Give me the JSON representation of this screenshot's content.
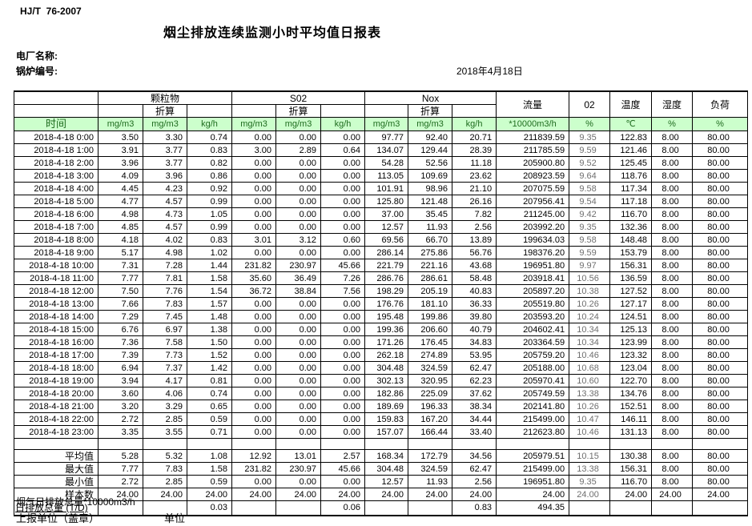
{
  "header": {
    "standard": "HJ/T  76-2007",
    "title": "烟尘排放连续监测小时平均值日报表",
    "plant_label": "电厂名称:",
    "boiler_label": "锅炉编号:",
    "date": "2018年4月18日"
  },
  "table": {
    "group_pm": "颗粒物",
    "group_so2": "S02",
    "group_nox": "Nox",
    "converted_label": "折算",
    "time_label": "时间",
    "flow_label": "流量",
    "o2_label": "02",
    "temp_label": "温度",
    "humidity_label": "湿度",
    "load_label": "负荷",
    "units": [
      "mg/m3",
      "mg/m3",
      "kg/h",
      "mg/m3",
      "mg/m3",
      "kg/h",
      "mg/m3",
      "mg/m3",
      "kg/h",
      "*10000m3/h",
      "%",
      "℃",
      "%",
      "%"
    ],
    "rows": [
      {
        "time": "2018-4-18 0:00",
        "values": [
          "3.50",
          "3.30",
          "0.74",
          "0.00",
          "0.00",
          "0.00",
          "97.77",
          "92.40",
          "20.71",
          "211839.59",
          "9.35",
          "122.83",
          "8.00",
          "80.00"
        ]
      },
      {
        "time": "2018-4-18 1:00",
        "values": [
          "3.91",
          "3.77",
          "0.83",
          "3.00",
          "2.89",
          "0.64",
          "134.07",
          "129.44",
          "28.39",
          "211785.59",
          "9.59",
          "121.46",
          "8.00",
          "80.00"
        ]
      },
      {
        "time": "2018-4-18 2:00",
        "values": [
          "3.96",
          "3.77",
          "0.82",
          "0.00",
          "0.00",
          "0.00",
          "54.28",
          "52.56",
          "11.18",
          "205900.80",
          "9.52",
          "125.45",
          "8.00",
          "80.00"
        ]
      },
      {
        "time": "2018-4-18 3:00",
        "values": [
          "4.09",
          "3.96",
          "0.86",
          "0.00",
          "0.00",
          "0.00",
          "113.05",
          "109.69",
          "23.62",
          "208923.59",
          "9.64",
          "118.76",
          "8.00",
          "80.00"
        ]
      },
      {
        "time": "2018-4-18 4:00",
        "values": [
          "4.45",
          "4.23",
          "0.92",
          "0.00",
          "0.00",
          "0.00",
          "101.91",
          "98.96",
          "21.10",
          "207075.59",
          "9.58",
          "117.34",
          "8.00",
          "80.00"
        ]
      },
      {
        "time": "2018-4-18 5:00",
        "values": [
          "4.77",
          "4.57",
          "0.99",
          "0.00",
          "0.00",
          "0.00",
          "125.80",
          "121.48",
          "26.16",
          "207956.41",
          "9.54",
          "117.18",
          "8.00",
          "80.00"
        ]
      },
      {
        "time": "2018-4-18 6:00",
        "values": [
          "4.98",
          "4.73",
          "1.05",
          "0.00",
          "0.00",
          "0.00",
          "37.00",
          "35.45",
          "7.82",
          "211245.00",
          "9.42",
          "116.70",
          "8.00",
          "80.00"
        ]
      },
      {
        "time": "2018-4-18 7:00",
        "values": [
          "4.85",
          "4.57",
          "0.99",
          "0.00",
          "0.00",
          "0.00",
          "12.57",
          "11.93",
          "2.56",
          "203992.20",
          "9.35",
          "132.36",
          "8.00",
          "80.00"
        ]
      },
      {
        "time": "2018-4-18 8:00",
        "values": [
          "4.18",
          "4.02",
          "0.83",
          "3.01",
          "3.12",
          "0.60",
          "69.56",
          "66.70",
          "13.89",
          "199634.03",
          "9.58",
          "148.48",
          "8.00",
          "80.00"
        ]
      },
      {
        "time": "2018-4-18 9:00",
        "values": [
          "5.17",
          "4.98",
          "1.02",
          "0.00",
          "0.00",
          "0.00",
          "286.14",
          "275.86",
          "56.76",
          "198376.20",
          "9.59",
          "153.79",
          "8.00",
          "80.00"
        ]
      },
      {
        "time": "2018-4-18 10:00",
        "values": [
          "7.31",
          "7.28",
          "1.44",
          "231.82",
          "230.97",
          "45.66",
          "221.79",
          "221.16",
          "43.68",
          "196951.80",
          "9.97",
          "156.31",
          "8.00",
          "80.00"
        ]
      },
      {
        "time": "2018-4-18 11:00",
        "values": [
          "7.77",
          "7.81",
          "1.58",
          "35.60",
          "36.49",
          "7.26",
          "286.76",
          "286.61",
          "58.48",
          "203918.41",
          "10.56",
          "136.59",
          "8.00",
          "80.00"
        ]
      },
      {
        "time": "2018-4-18 12:00",
        "values": [
          "7.50",
          "7.76",
          "1.54",
          "36.72",
          "38.84",
          "7.56",
          "198.29",
          "205.19",
          "40.83",
          "205897.20",
          "10.38",
          "127.52",
          "8.00",
          "80.00"
        ]
      },
      {
        "time": "2018-4-18 13:00",
        "values": [
          "7.66",
          "7.83",
          "1.57",
          "0.00",
          "0.00",
          "0.00",
          "176.76",
          "181.10",
          "36.33",
          "205519.80",
          "10.26",
          "127.17",
          "8.00",
          "80.00"
        ]
      },
      {
        "time": "2018-4-18 14:00",
        "values": [
          "7.29",
          "7.45",
          "1.48",
          "0.00",
          "0.00",
          "0.00",
          "195.48",
          "199.86",
          "39.80",
          "203593.20",
          "10.24",
          "124.51",
          "8.00",
          "80.00"
        ]
      },
      {
        "time": "2018-4-18 15:00",
        "values": [
          "6.76",
          "6.97",
          "1.38",
          "0.00",
          "0.00",
          "0.00",
          "199.36",
          "206.60",
          "40.79",
          "204602.41",
          "10.34",
          "125.13",
          "8.00",
          "80.00"
        ]
      },
      {
        "time": "2018-4-18 16:00",
        "values": [
          "7.36",
          "7.58",
          "1.50",
          "0.00",
          "0.00",
          "0.00",
          "171.26",
          "176.45",
          "34.83",
          "203364.59",
          "10.34",
          "123.99",
          "8.00",
          "80.00"
        ]
      },
      {
        "time": "2018-4-18 17:00",
        "values": [
          "7.39",
          "7.73",
          "1.52",
          "0.00",
          "0.00",
          "0.00",
          "262.18",
          "274.89",
          "53.95",
          "205759.20",
          "10.46",
          "123.32",
          "8.00",
          "80.00"
        ]
      },
      {
        "time": "2018-4-18 18:00",
        "values": [
          "6.94",
          "7.37",
          "1.42",
          "0.00",
          "0.00",
          "0.00",
          "304.48",
          "324.59",
          "62.47",
          "205188.00",
          "10.68",
          "123.04",
          "8.00",
          "80.00"
        ]
      },
      {
        "time": "2018-4-18 19:00",
        "values": [
          "3.94",
          "4.17",
          "0.81",
          "0.00",
          "0.00",
          "0.00",
          "302.13",
          "320.95",
          "62.23",
          "205970.41",
          "10.60",
          "122.70",
          "8.00",
          "80.00"
        ]
      },
      {
        "time": "2018-4-18 20:00",
        "values": [
          "3.60",
          "4.06",
          "0.74",
          "0.00",
          "0.00",
          "0.00",
          "182.86",
          "225.09",
          "37.62",
          "205749.59",
          "13.38",
          "134.76",
          "8.00",
          "80.00"
        ]
      },
      {
        "time": "2018-4-18 21:00",
        "values": [
          "3.20",
          "3.29",
          "0.65",
          "0.00",
          "0.00",
          "0.00",
          "189.69",
          "196.33",
          "38.34",
          "202141.80",
          "10.26",
          "152.51",
          "8.00",
          "80.00"
        ]
      },
      {
        "time": "2018-4-18 22:00",
        "values": [
          "2.72",
          "2.85",
          "0.59",
          "0.00",
          "0.00",
          "0.00",
          "159.83",
          "167.20",
          "34.44",
          "215499.00",
          "10.47",
          "146.11",
          "8.00",
          "80.00"
        ]
      },
      {
        "time": "2018-4-18 23:00",
        "values": [
          "3.35",
          "3.55",
          "0.71",
          "0.00",
          "0.00",
          "0.00",
          "157.07",
          "166.44",
          "33.40",
          "212623.80",
          "10.46",
          "131.13",
          "8.00",
          "80.00"
        ]
      }
    ],
    "summary": [
      {
        "label": "平均值",
        "values": [
          "5.28",
          "5.32",
          "1.08",
          "12.92",
          "13.01",
          "2.57",
          "168.34",
          "172.79",
          "34.56",
          "205979.51",
          "10.15",
          "130.38",
          "8.00",
          "80.00"
        ]
      },
      {
        "label": "最大值",
        "values": [
          "7.77",
          "7.83",
          "1.58",
          "231.82",
          "230.97",
          "45.66",
          "304.48",
          "324.59",
          "62.47",
          "215499.00",
          "13.38",
          "156.31",
          "8.00",
          "80.00"
        ]
      },
      {
        "label": "最小值",
        "values": [
          "2.72",
          "2.85",
          "0.59",
          "0.00",
          "0.00",
          "0.00",
          "12.57",
          "11.93",
          "2.56",
          "196951.80",
          "9.35",
          "116.70",
          "8.00",
          "80.00"
        ]
      },
      {
        "label": "样本数",
        "values": [
          "24.00",
          "24.00",
          "24.00",
          "24.00",
          "24.00",
          "24.00",
          "24.00",
          "24.00",
          "24.00",
          "24.00",
          "24.00",
          "24.00",
          "24.00",
          "24.00"
        ]
      }
    ],
    "total": {
      "label": "日排放总量 (T/D)",
      "values": [
        "",
        "",
        "0.03",
        "",
        "",
        "0.06",
        "",
        "",
        "0.83",
        "494.35",
        "",
        "",
        "",
        ""
      ]
    }
  },
  "footer": {
    "line1": "烟气日排放总量*10000m3/h",
    "line2": "上报单位（盖章）",
    "line3": "单位"
  }
}
